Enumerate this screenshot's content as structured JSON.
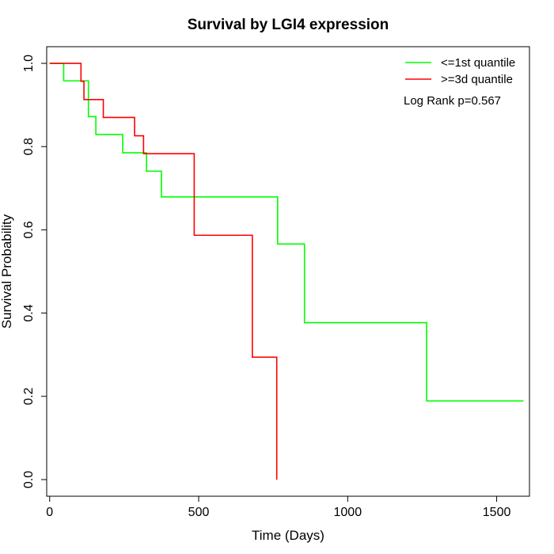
{
  "chart_data": {
    "type": "line",
    "step": true,
    "title": "Survival by LGI4 expression",
    "xlabel": "Time (Days)",
    "ylabel": "Survival Probability",
    "xlim": [
      -10,
      1610
    ],
    "ylim": [
      -0.04,
      1.04
    ],
    "xticks": [
      0,
      500,
      1000,
      1500
    ],
    "yticks": [
      0.0,
      0.2,
      0.4,
      0.6,
      0.8,
      1.0
    ],
    "xtick_labels": [
      "0",
      "500",
      "1000",
      "1500"
    ],
    "ytick_labels": [
      "0.0",
      "0.2",
      "0.4",
      "0.6",
      "0.8",
      "1.0"
    ],
    "legend_position": "top-right",
    "annotation": "Log Rank p=0.567",
    "series": [
      {
        "name": "<=1st quantile",
        "color": "#00ff00",
        "x": [
          0,
          47,
          130,
          155,
          245,
          325,
          375,
          765,
          855,
          1265,
          1590
        ],
        "y": [
          1.0,
          0.958,
          0.872,
          0.829,
          0.785,
          0.741,
          0.679,
          0.566,
          0.377,
          0.189,
          0.189
        ]
      },
      {
        "name": ">=3d quantile",
        "color": "#ff0000",
        "x": [
          0,
          105,
          115,
          180,
          285,
          315,
          485,
          680,
          762,
          762
        ],
        "y": [
          1.0,
          0.957,
          0.913,
          0.87,
          0.826,
          0.783,
          0.587,
          0.294,
          0.294,
          0.0
        ]
      }
    ]
  }
}
